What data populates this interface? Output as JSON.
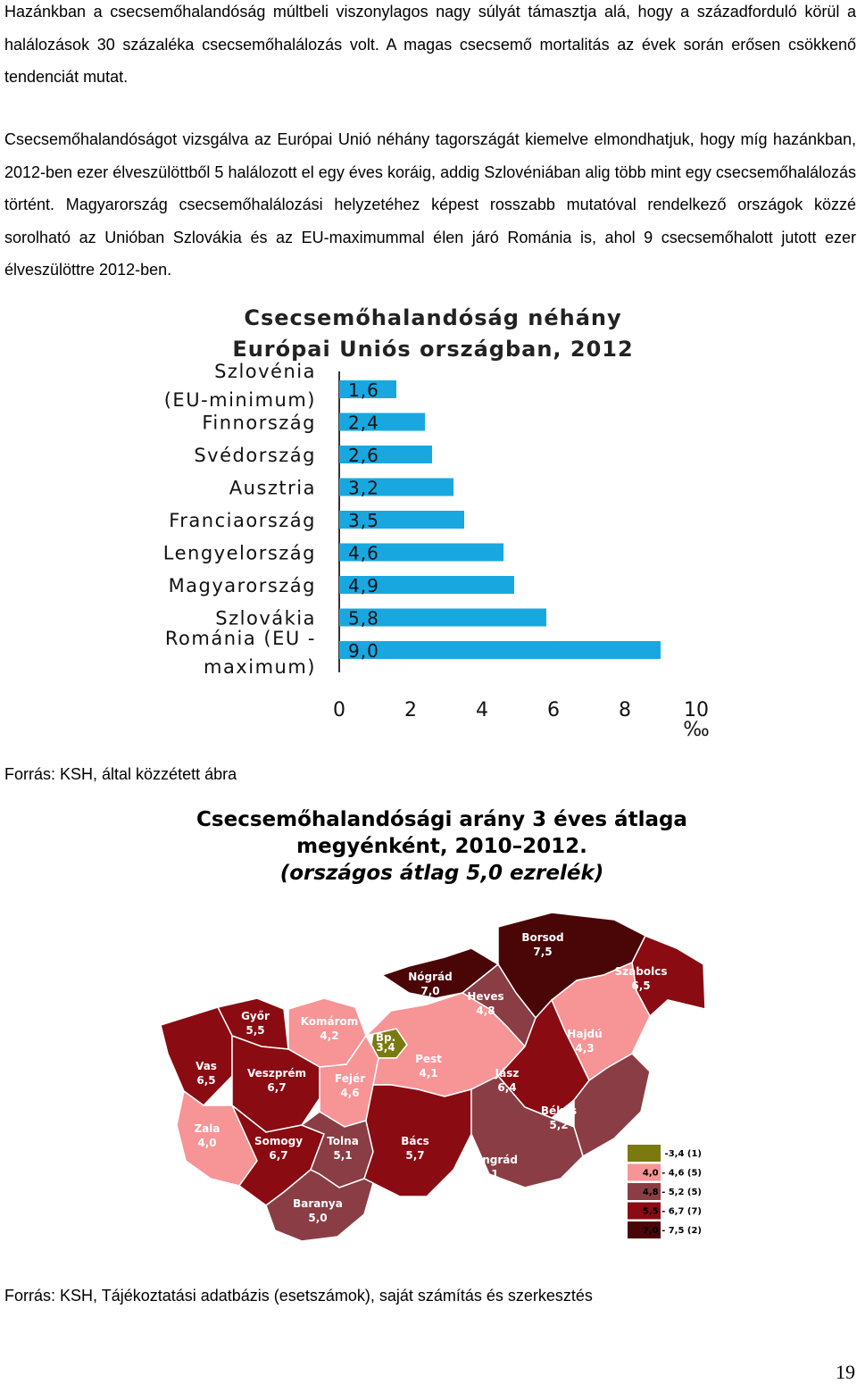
{
  "paragraphs": [
    "Hazánkban a csecsemőhalandóság múltbeli viszonylagos nagy súlyát támasztja alá, hogy a századforduló körül a halálozások 30 százaléka csecsemőhalálozás volt. A magas csecsemő mortalitás az évek során erősen csökkenő tendenciát mutat.",
    "Csecsemőhalandóságot vizsgálva az Európai Unió néhány tagországát kiemelve elmondhatjuk, hogy míg hazánkban, 2012-ben ezer élveszülöttből 5 halálozott el egy éves koráig, addig Szlovéniában alig több mint egy csecsemőhalálozás történt. Magyarország csecsemőhalálozási helyzetéhez képest rosszabb mutatóval rendelkező országok közzé sorolható az Unióban Szlovákia és az EU-maximummal élen járó Románia is, ahol 9 csecsemőhalott jutott ezer élveszülöttre 2012-ben."
  ],
  "chart_data": [
    {
      "type": "bar",
      "orientation": "horizontal",
      "title_lines": [
        "Csecsemőhalandóság néhány",
        "Európai Uniós országban, 2012"
      ],
      "categories": [
        [
          "Szlovénia",
          "(EU-minimum)"
        ],
        [
          "Finnország"
        ],
        [
          "Svédország"
        ],
        [
          "Ausztria"
        ],
        [
          "Franciaország"
        ],
        [
          "Lengyelország"
        ],
        [
          "Magyarország"
        ],
        [
          "Szlovákia"
        ],
        [
          "Románia (EU -",
          "maximum)"
        ]
      ],
      "values": [
        1.6,
        2.4,
        2.6,
        3.2,
        3.5,
        4.6,
        4.9,
        5.8,
        9.0
      ],
      "value_labels": [
        "1,6",
        "2,4",
        "2,6",
        "3,2",
        "3,5",
        "4,6",
        "4,9",
        "5,8",
        "9,0"
      ],
      "xlim": [
        0,
        10
      ],
      "xticks": [
        "0",
        "2",
        "4",
        "6",
        "8",
        "10"
      ],
      "unit": "‰",
      "bar_color": "#19a7e0",
      "grid": false
    },
    {
      "type": "choropleth-map",
      "title_lines": [
        "Csecsemőhalandósági arány 3 éves átlaga",
        "megyénként, 2010–2012.",
        "(országos átlag 5,0 ezrelék)"
      ],
      "regions": [
        {
          "name": "Borsod",
          "value": "7,5",
          "class": 4
        },
        {
          "name": "Szabolcs",
          "value": "6,5",
          "class": 3
        },
        {
          "name": "Nógrád",
          "value": "7,0",
          "class": 4
        },
        {
          "name": "Heves",
          "value": "4,8",
          "class": 2
        },
        {
          "name": "Győr",
          "value": "5,5",
          "class": 3
        },
        {
          "name": "Komárom",
          "value": "4,2",
          "class": 1
        },
        {
          "name": "Bp.",
          "value": "3,4",
          "class": 0
        },
        {
          "name": "Hajdú",
          "value": "4,3",
          "class": 1
        },
        {
          "name": "Vas",
          "value": "6,5",
          "class": 3
        },
        {
          "name": "Veszprém",
          "value": "6,7",
          "class": 3
        },
        {
          "name": "Fejér",
          "value": "4,6",
          "class": 1
        },
        {
          "name": "Pest",
          "value": "4,1",
          "class": 1
        },
        {
          "name": "Jász",
          "value": "6,4",
          "class": 3
        },
        {
          "name": "Békés",
          "value": "5,2",
          "class": 2
        },
        {
          "name": "Zala",
          "value": "4,0",
          "class": 1
        },
        {
          "name": "Somogy",
          "value": "6,7",
          "class": 3
        },
        {
          "name": "Tolna",
          "value": "5,1",
          "class": 2
        },
        {
          "name": "Bács",
          "value": "5,7",
          "class": 3
        },
        {
          "name": "Csongrád",
          "value": "5,1",
          "class": 2
        },
        {
          "name": "Baranya",
          "value": "5,0",
          "class": 2
        }
      ],
      "legend": [
        {
          "range": "-3,4",
          "count": "(1)",
          "color": "#7a7a10"
        },
        {
          "range": "4,0 - 4,6",
          "count": "(5)",
          "color": "#f79496"
        },
        {
          "range": "4,8 - 5,2",
          "count": "(5)",
          "color": "#8a3d44"
        },
        {
          "range": "5,5 - 6,7",
          "count": "(7)",
          "color": "#8a0b12"
        },
        {
          "range": "7,0 - 7,5",
          "count": "(2)",
          "color": "#4a0506"
        }
      ],
      "legend_position": "bottom-right"
    }
  ],
  "sources": [
    "Forrás: KSH, által közzétett ábra",
    "Forrás: KSH, Tájékoztatási adatbázis (esetszámok), saját számítás és szerkesztés"
  ],
  "page_number": "19"
}
